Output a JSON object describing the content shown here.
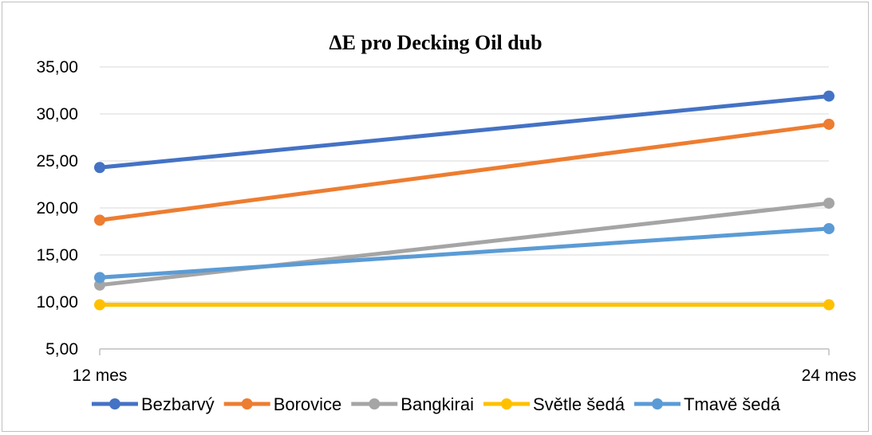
{
  "chart_data": {
    "type": "line",
    "title": "ΔE pro Decking Oil dub",
    "xlabel": "",
    "ylabel": "",
    "categories": [
      "12 mes",
      "24 mes"
    ],
    "ylim": [
      5,
      35
    ],
    "yticks": [
      "5,00",
      "10,00",
      "15,00",
      "20,00",
      "25,00",
      "30,00",
      "35,00"
    ],
    "grid": true,
    "legend_position": "bottom",
    "series": [
      {
        "name": "Bezbarvý",
        "color": "#4472c4",
        "values": [
          24.3,
          31.9
        ]
      },
      {
        "name": "Borovice",
        "color": "#ed7d31",
        "values": [
          18.7,
          28.9
        ]
      },
      {
        "name": "Bangkirai",
        "color": "#a5a5a5",
        "values": [
          11.8,
          20.5
        ]
      },
      {
        "name": "Světle šedá",
        "color": "#ffc000",
        "values": [
          9.7,
          9.7
        ]
      },
      {
        "name": "Tmavě šedá",
        "color": "#5b9bd5",
        "values": [
          12.6,
          17.8
        ]
      }
    ]
  }
}
